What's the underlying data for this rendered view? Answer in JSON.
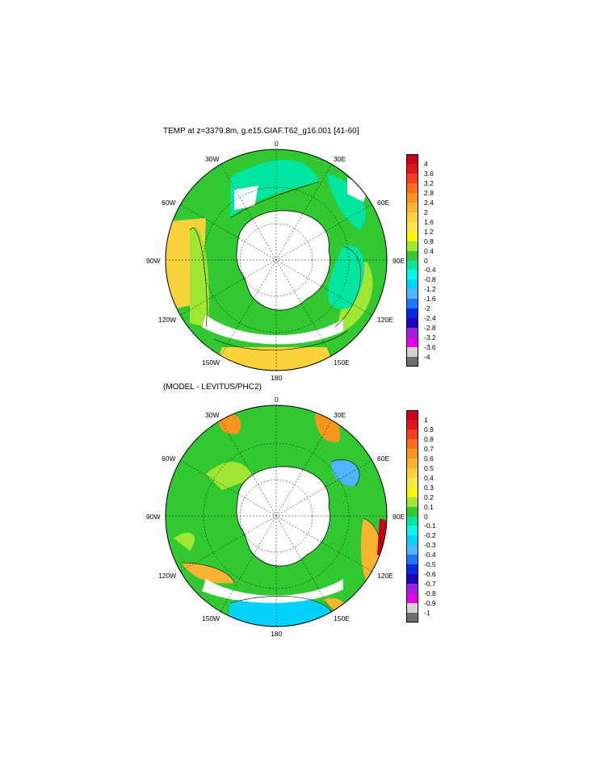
{
  "panels": [
    {
      "title": "TEMP at z=3379.8m, g.e15.GIAF.T62_g16.001 [41-60]",
      "lon_labels": {
        "n0": "0",
        "n30e": "30E",
        "n60e": "60E",
        "n90e": "90E",
        "n120e": "120E",
        "n150e": "150E",
        "n180": "180",
        "n150w": "150W",
        "n120w": "120W",
        "n90w": "90W",
        "n60w": "60W",
        "n30w": "30W"
      },
      "colorbar": {
        "labels": [
          "4",
          "3.6",
          "3.2",
          "2.8",
          "2.4",
          "2",
          "1.6",
          "1.2",
          "0.8",
          "0.4",
          "0",
          "-0.4",
          "-0.8",
          "-1.2",
          "-1.6",
          "-2",
          "-2.4",
          "-2.8",
          "-3.2",
          "-3.6",
          "-4"
        ],
        "colors": [
          "#c8001e",
          "#e1141e",
          "#fa3c1e",
          "#fa6e1e",
          "#fa961e",
          "#fab432",
          "#fad23c",
          "#fae646",
          "#faf500",
          "#a0e632",
          "#32c832",
          "#00e6a0",
          "#00fae6",
          "#00d2fa",
          "#50b4fa",
          "#1e78fa",
          "#0a28e6",
          "#1e00be",
          "#a020dc",
          "#e600e6",
          "#d2d2d2",
          "#6e6e6e"
        ]
      },
      "zones": [
        {
          "name": "pole-continent",
          "color": "#ffffff"
        },
        {
          "name": "warm-band",
          "color": "#fad23c"
        },
        {
          "name": "mid-band",
          "color": "#a0e632"
        },
        {
          "name": "cold-band",
          "color": "#32c832"
        },
        {
          "name": "coldest-band",
          "color": "#00e6a0"
        },
        {
          "name": "sea-ice-shelf",
          "color": "#ffffff"
        }
      ]
    },
    {
      "title": "(MODEL - LEVITUS/PHC2)",
      "lon_labels": {
        "n0": "0",
        "n30e": "30E",
        "n60e": "60E",
        "n90e": "90E",
        "n120e": "120E",
        "n150e": "150E",
        "n180": "180",
        "n150w": "150W",
        "n120w": "120W",
        "n90w": "90W",
        "n60w": "60W",
        "n30w": "30W"
      },
      "colorbar": {
        "labels": [
          "1",
          "0.9",
          "0.8",
          "0.7",
          "0.6",
          "0.5",
          "0.4",
          "0.3",
          "0.2",
          "0.1",
          "0",
          "-0.1",
          "-0.2",
          "-0.3",
          "-0.4",
          "-0.5",
          "-0.6",
          "-0.7",
          "-0.8",
          "-0.9",
          "-1"
        ],
        "colors": [
          "#c8001e",
          "#e1141e",
          "#fa3c1e",
          "#fa6e1e",
          "#fa961e",
          "#fab432",
          "#fad23c",
          "#fae646",
          "#faf500",
          "#a0e632",
          "#32c832",
          "#00e6a0",
          "#00fae6",
          "#00d2fa",
          "#50b4fa",
          "#1e78fa",
          "#0a28e6",
          "#1e00be",
          "#a020dc",
          "#e600e6",
          "#d2d2d2",
          "#6e6e6e"
        ]
      },
      "zones": [
        {
          "name": "pole-continent",
          "color": "#ffffff"
        },
        {
          "name": "positive-anomaly",
          "color": "#a0e632"
        },
        {
          "name": "near-zero",
          "color": "#32c832"
        },
        {
          "name": "negative-anomaly",
          "color": "#00d2fa"
        },
        {
          "name": "warm-anomaly",
          "color": "#fa961e"
        }
      ]
    }
  ]
}
